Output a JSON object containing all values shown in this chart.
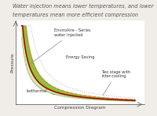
{
  "title_line1": "Water injection means lower temperatures, and lower",
  "title_line2": "temperatures mean more efficient compression",
  "xlabel": "Compression Diagram",
  "ylabel": "Pressure",
  "title_fontsize": 4.8,
  "label_fontsize": 4.2,
  "annotation_fontsize": 3.6,
  "bg_color": "#f0ede8",
  "plot_bg": "#ffffff",
  "curve_isothermal_color": "#999999",
  "curve_enviroaire_color": "#aa0000",
  "curve_twostage_color": "#e87070",
  "curve_dotted_color": "#bbbbbb",
  "fill_green": "#88bb22",
  "fill_light_green": "#aaccaa",
  "annotations": {
    "enviroaire": "EnviroAire - Series\nwater injected",
    "energy_saving": "Energy Saving",
    "isothermal": "Isothermal",
    "twostage": "Two stage with\ninter-cooling"
  }
}
